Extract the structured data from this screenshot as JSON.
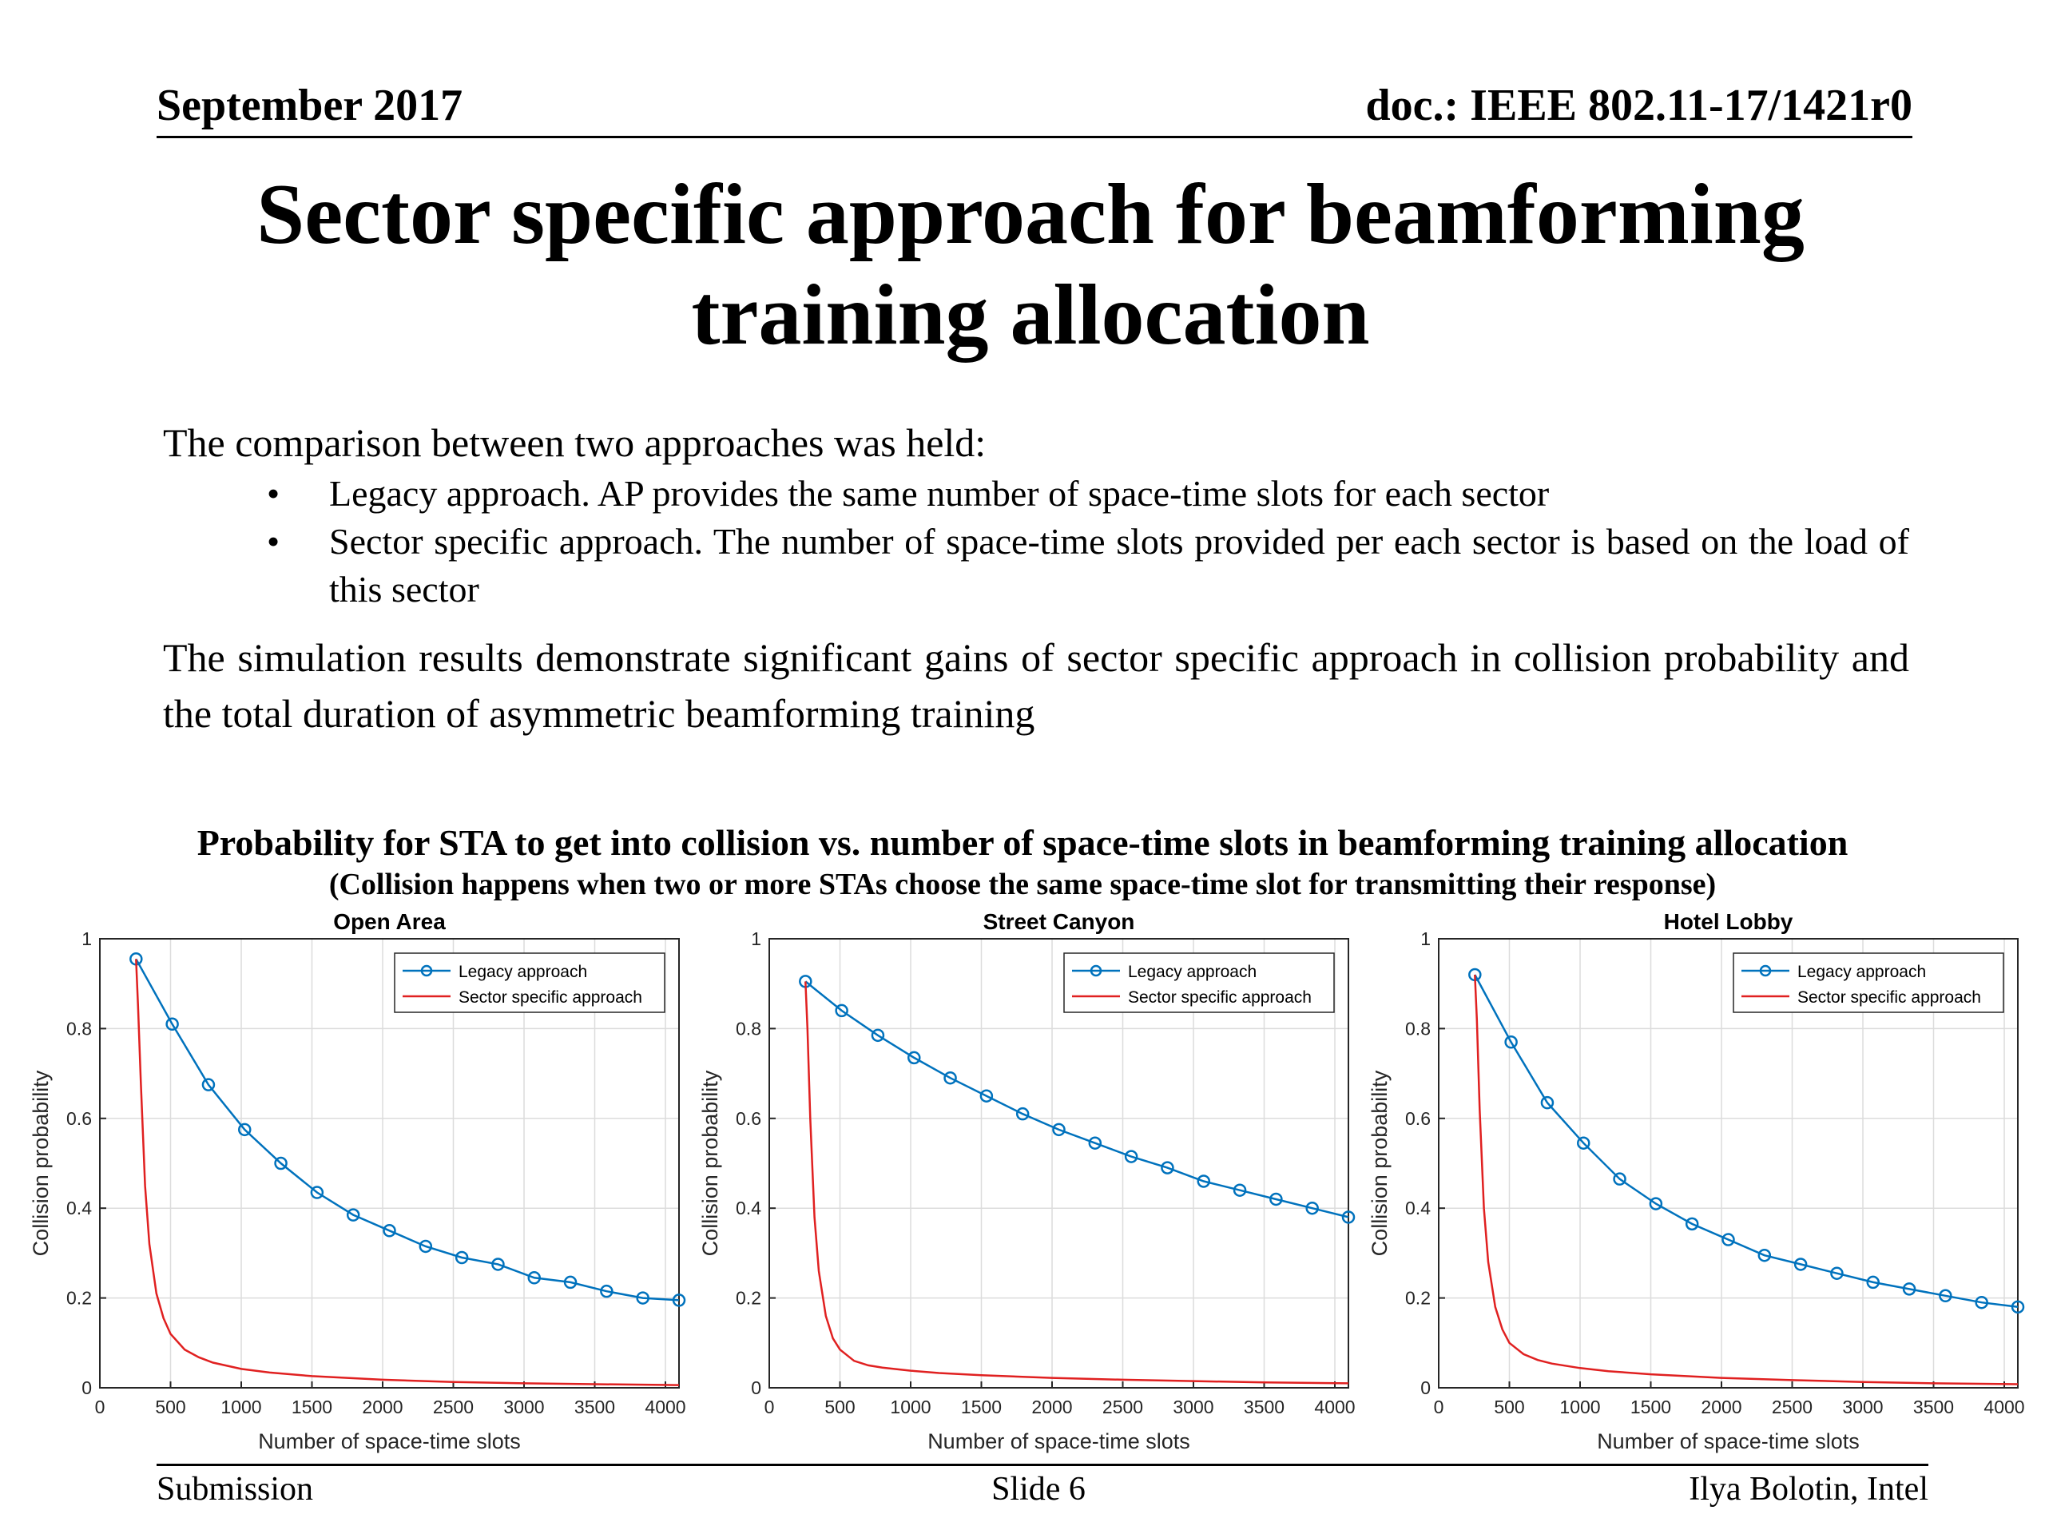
{
  "header": {
    "date": "September 2017",
    "doc": "doc.: IEEE 802.11-17/1421r0"
  },
  "title": {
    "line1": "Sector specific approach for beamforming",
    "line2": "training allocation"
  },
  "body": {
    "intro": "The comparison between two approaches was held:",
    "bullets": [
      "Legacy approach. AP provides the same number of space-time slots for each sector",
      "Sector specific approach. The number of space-time slots provided per each sector is based on the load of this sector"
    ],
    "bullet_glyph": "•",
    "conclusion": "The simulation results demonstrate significant gains of sector specific approach in collision probability and the total duration of asymmetric beamforming training"
  },
  "figure": {
    "caption": "Probability for STA to get into collision vs. number of space-time slots in beamforming training allocation",
    "subcaption": "(Collision happens when two or more STAs choose the same space-time slot for transmitting their response)"
  },
  "chart_data": [
    {
      "type": "line",
      "title": "Open Area",
      "xlabel": "Number of space-time slots",
      "ylabel": "Collision probability",
      "xlim": [
        0,
        4096
      ],
      "ylim": [
        0,
        1
      ],
      "xticks": [
        0,
        500,
        1000,
        1500,
        2000,
        2500,
        3000,
        3500,
        4000
      ],
      "yticks": [
        0,
        0.2,
        0.4,
        0.6,
        0.8,
        1
      ],
      "grid": true,
      "legend_position": "top-right",
      "series": [
        {
          "name": "Legacy approach",
          "color": "#0072BD",
          "marker": "circle",
          "x": [
            256,
            512,
            768,
            1024,
            1280,
            1536,
            1792,
            2048,
            2304,
            2560,
            2816,
            3072,
            3328,
            3584,
            3840,
            4096
          ],
          "y": [
            0.955,
            0.81,
            0.675,
            0.575,
            0.5,
            0.435,
            0.385,
            0.35,
            0.315,
            0.29,
            0.275,
            0.245,
            0.235,
            0.215,
            0.2,
            0.195
          ]
        },
        {
          "name": "Sector specific approach",
          "color": "#E02020",
          "marker": "none",
          "x": [
            256,
            270,
            290,
            320,
            350,
            400,
            450,
            500,
            600,
            700,
            800,
            1000,
            1200,
            1500,
            2000,
            2500,
            3000,
            3500,
            4096
          ],
          "y": [
            0.955,
            0.85,
            0.68,
            0.45,
            0.32,
            0.21,
            0.155,
            0.12,
            0.085,
            0.068,
            0.056,
            0.042,
            0.034,
            0.026,
            0.018,
            0.013,
            0.01,
            0.008,
            0.006
          ]
        }
      ]
    },
    {
      "type": "line",
      "title": "Street Canyon",
      "xlabel": "Number of space-time slots",
      "ylabel": "Collision probability",
      "xlim": [
        0,
        4096
      ],
      "ylim": [
        0,
        1
      ],
      "xticks": [
        0,
        500,
        1000,
        1500,
        2000,
        2500,
        3000,
        3500,
        4000
      ],
      "yticks": [
        0,
        0.2,
        0.4,
        0.6,
        0.8,
        1
      ],
      "grid": true,
      "legend_position": "top-right",
      "series": [
        {
          "name": "Legacy approach",
          "color": "#0072BD",
          "marker": "circle",
          "x": [
            256,
            512,
            768,
            1024,
            1280,
            1536,
            1792,
            2048,
            2304,
            2560,
            2816,
            3072,
            3328,
            3584,
            3840,
            4096
          ],
          "y": [
            0.905,
            0.84,
            0.785,
            0.735,
            0.69,
            0.65,
            0.61,
            0.575,
            0.545,
            0.515,
            0.49,
            0.46,
            0.44,
            0.42,
            0.4,
            0.38
          ]
        },
        {
          "name": "Sector specific approach",
          "color": "#E02020",
          "marker": "none",
          "x": [
            256,
            270,
            290,
            320,
            350,
            400,
            450,
            500,
            600,
            700,
            800,
            1000,
            1200,
            1500,
            2000,
            2500,
            3000,
            3500,
            4096
          ],
          "y": [
            0.905,
            0.8,
            0.6,
            0.38,
            0.26,
            0.16,
            0.11,
            0.085,
            0.06,
            0.05,
            0.045,
            0.038,
            0.033,
            0.028,
            0.022,
            0.018,
            0.015,
            0.012,
            0.01
          ]
        }
      ]
    },
    {
      "type": "line",
      "title": "Hotel Lobby",
      "xlabel": "Number of space-time slots",
      "ylabel": "Collision probability",
      "xlim": [
        0,
        4096
      ],
      "ylim": [
        0,
        1
      ],
      "xticks": [
        0,
        500,
        1000,
        1500,
        2000,
        2500,
        3000,
        3500,
        4000
      ],
      "yticks": [
        0,
        0.2,
        0.4,
        0.6,
        0.8,
        1
      ],
      "grid": true,
      "legend_position": "top-right",
      "series": [
        {
          "name": "Legacy approach",
          "color": "#0072BD",
          "marker": "circle",
          "x": [
            256,
            512,
            768,
            1024,
            1280,
            1536,
            1792,
            2048,
            2304,
            2560,
            2816,
            3072,
            3328,
            3584,
            3840,
            4096
          ],
          "y": [
            0.92,
            0.77,
            0.635,
            0.545,
            0.465,
            0.41,
            0.365,
            0.33,
            0.295,
            0.275,
            0.255,
            0.235,
            0.22,
            0.205,
            0.19,
            0.18
          ]
        },
        {
          "name": "Sector specific approach",
          "color": "#E02020",
          "marker": "none",
          "x": [
            256,
            270,
            290,
            320,
            350,
            400,
            450,
            500,
            600,
            700,
            800,
            1000,
            1200,
            1500,
            2000,
            2500,
            3000,
            3500,
            4096
          ],
          "y": [
            0.92,
            0.82,
            0.62,
            0.4,
            0.28,
            0.18,
            0.13,
            0.1,
            0.075,
            0.062,
            0.054,
            0.044,
            0.037,
            0.03,
            0.022,
            0.017,
            0.013,
            0.01,
            0.008
          ]
        }
      ]
    }
  ],
  "footer": {
    "left": "Submission",
    "center": "Slide 6",
    "right": "Ilya Bolotin, Intel"
  }
}
